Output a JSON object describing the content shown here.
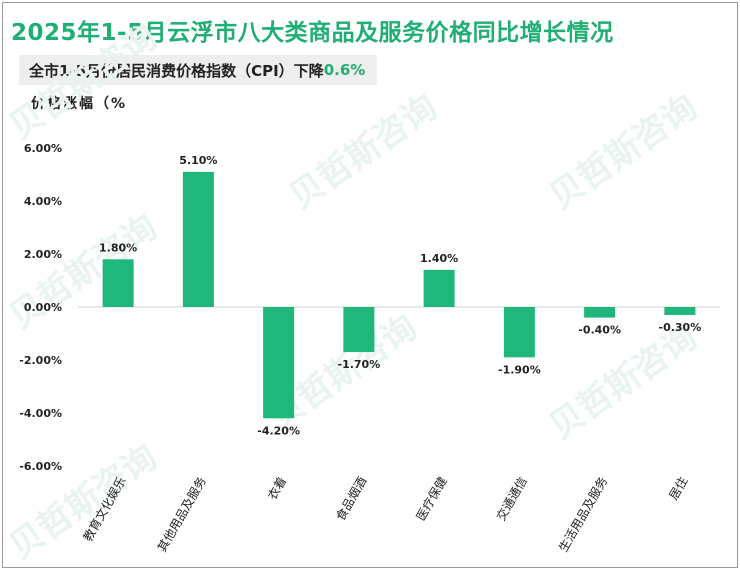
{
  "chart_data": {
    "type": "bar",
    "title": "2025年1-5月云浮市八大类商品及服务价格同比增长情况",
    "subtitle_prefix": "全市1-5月份居民消费价格指数（CPI）下降",
    "subtitle_value": "0.6%",
    "ylabel": "价格涨幅（%",
    "xlabel": "",
    "categories": [
      "教育文化娱乐",
      "其他用品及服务",
      "衣着",
      "食品烟酒",
      "医疗保健",
      "交通通信",
      "生活用品及服务",
      "居住"
    ],
    "values": [
      1.8,
      5.1,
      -4.2,
      -1.7,
      1.4,
      -1.9,
      -0.4,
      -0.3
    ],
    "data_labels": [
      "1.80%",
      "5.10%",
      "-4.20%",
      "-1.70%",
      "1.40%",
      "-1.90%",
      "-0.40%",
      "-0.30%"
    ],
    "ylim": [
      -6,
      6
    ],
    "yticks": [
      6,
      4,
      2,
      0,
      -2,
      -4,
      -6
    ],
    "ytick_labels": [
      "6.00%",
      "4.00%",
      "2.00%",
      "0.00%",
      "-2.00%",
      "-4.00%",
      "-6.00%"
    ],
    "grid": false,
    "legend": "none",
    "bar_color": "#1fb77b",
    "watermark": "贝哲斯咨询"
  }
}
